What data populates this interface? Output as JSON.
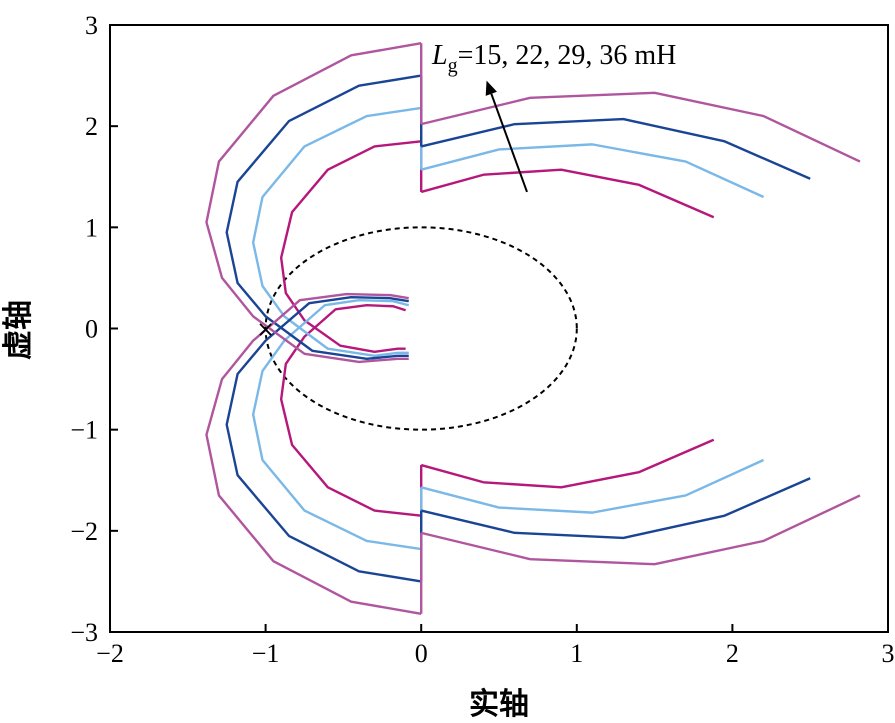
{
  "chart_data": {
    "type": "line",
    "title": "",
    "xlabel": "实轴",
    "ylabel": "虚轴",
    "xlim": [
      -2,
      3
    ],
    "ylim": [
      -3,
      3
    ],
    "xticks": [
      -2,
      -1,
      0,
      1,
      2,
      3
    ],
    "yticks": [
      -3,
      -2,
      -1,
      0,
      1,
      2,
      3
    ],
    "xtick_labels": [
      "−2",
      "−1",
      "0",
      "1",
      "2",
      "3"
    ],
    "ytick_labels": [
      "−3",
      "−2",
      "−1",
      "0",
      "1",
      "2",
      "3"
    ],
    "grid": false,
    "annotation": {
      "symbol": "L",
      "subscript": "g",
      "text": "=15, 22, 29, 36 mH",
      "arrow_from": [
        0.68,
        1.35
      ],
      "arrow_to": [
        0.42,
        2.45
      ]
    },
    "critical_point": {
      "x": -1,
      "y": 0,
      "marker": "×"
    },
    "unit_circle": {
      "center": [
        0,
        0
      ],
      "radius": 1,
      "style": "dashed"
    },
    "series": [
      {
        "color": "#b5187a",
        "values": [
          [
            0.0,
            1.85
          ],
          [
            -0.3,
            1.8
          ],
          [
            -0.6,
            1.57
          ],
          [
            -0.83,
            1.15
          ],
          [
            -0.9,
            0.7
          ],
          [
            -0.87,
            0.35
          ],
          [
            -0.75,
            0.08
          ],
          [
            -0.52,
            -0.17
          ],
          [
            -0.3,
            -0.23
          ],
          [
            -0.15,
            -0.2
          ],
          [
            -0.1,
            -0.2
          ]
        ],
        "upper_branch": [
          [
            0.0,
            1.35
          ],
          [
            0.4,
            1.52
          ],
          [
            0.9,
            1.57
          ],
          [
            1.4,
            1.42
          ],
          [
            1.88,
            1.1
          ]
        ],
        "lower_loop": [
          [
            -0.1,
            0.18
          ],
          [
            -0.18,
            0.22
          ],
          [
            -0.35,
            0.23
          ],
          [
            -0.55,
            0.19
          ],
          [
            -0.75,
            -0.08
          ],
          [
            -0.87,
            -0.35
          ],
          [
            -0.9,
            -0.7
          ],
          [
            -0.83,
            -1.15
          ],
          [
            -0.6,
            -1.57
          ],
          [
            -0.3,
            -1.8
          ],
          [
            0.0,
            -1.85
          ]
        ],
        "lower_branch": [
          [
            0.0,
            -1.35
          ],
          [
            0.4,
            -1.52
          ],
          [
            0.9,
            -1.57
          ],
          [
            1.4,
            -1.42
          ],
          [
            1.88,
            -1.1
          ]
        ]
      },
      {
        "color": "#7ab8e8",
        "values": [
          [
            0.0,
            2.18
          ],
          [
            -0.35,
            2.1
          ],
          [
            -0.75,
            1.8
          ],
          [
            -1.02,
            1.3
          ],
          [
            -1.08,
            0.85
          ],
          [
            -1.02,
            0.42
          ],
          [
            -0.88,
            0.12
          ],
          [
            -0.6,
            -0.2
          ],
          [
            -0.3,
            -0.27
          ],
          [
            -0.15,
            -0.24
          ],
          [
            -0.08,
            -0.24
          ]
        ],
        "upper_branch": [
          [
            0.0,
            1.57
          ],
          [
            0.5,
            1.77
          ],
          [
            1.1,
            1.82
          ],
          [
            1.7,
            1.65
          ],
          [
            2.2,
            1.3
          ]
        ],
        "lower_loop": [
          [
            -0.08,
            0.23
          ],
          [
            -0.18,
            0.27
          ],
          [
            -0.4,
            0.28
          ],
          [
            -0.62,
            0.23
          ],
          [
            -0.88,
            -0.12
          ],
          [
            -1.02,
            -0.42
          ],
          [
            -1.08,
            -0.85
          ],
          [
            -1.02,
            -1.3
          ],
          [
            -0.75,
            -1.8
          ],
          [
            -0.35,
            -2.1
          ],
          [
            0.0,
            -2.18
          ]
        ],
        "lower_branch": [
          [
            0.0,
            -1.57
          ],
          [
            0.5,
            -1.77
          ],
          [
            1.1,
            -1.82
          ],
          [
            1.7,
            -1.65
          ],
          [
            2.2,
            -1.3
          ]
        ]
      },
      {
        "color": "#1a4595",
        "values": [
          [
            0.0,
            2.5
          ],
          [
            -0.4,
            2.4
          ],
          [
            -0.85,
            2.05
          ],
          [
            -1.18,
            1.45
          ],
          [
            -1.25,
            0.95
          ],
          [
            -1.18,
            0.45
          ],
          [
            -1.0,
            0.12
          ],
          [
            -0.7,
            -0.22
          ],
          [
            -0.35,
            -0.3
          ],
          [
            -0.15,
            -0.27
          ],
          [
            -0.08,
            -0.27
          ]
        ],
        "upper_branch": [
          [
            0.0,
            1.8
          ],
          [
            0.6,
            2.02
          ],
          [
            1.3,
            2.07
          ],
          [
            1.95,
            1.85
          ],
          [
            2.5,
            1.48
          ]
        ],
        "lower_loop": [
          [
            -0.08,
            0.27
          ],
          [
            -0.2,
            0.3
          ],
          [
            -0.45,
            0.31
          ],
          [
            -0.72,
            0.25
          ],
          [
            -1.0,
            -0.12
          ],
          [
            -1.18,
            -0.45
          ],
          [
            -1.25,
            -0.95
          ],
          [
            -1.18,
            -1.45
          ],
          [
            -0.85,
            -2.05
          ],
          [
            -0.4,
            -2.4
          ],
          [
            0.0,
            -2.5
          ]
        ],
        "lower_branch": [
          [
            0.0,
            -1.8
          ],
          [
            0.6,
            -2.02
          ],
          [
            1.3,
            -2.07
          ],
          [
            1.95,
            -1.85
          ],
          [
            2.5,
            -1.48
          ]
        ]
      },
      {
        "color": "#b0569e",
        "values": [
          [
            0.0,
            2.82
          ],
          [
            -0.45,
            2.7
          ],
          [
            -0.95,
            2.3
          ],
          [
            -1.3,
            1.65
          ],
          [
            -1.38,
            1.05
          ],
          [
            -1.28,
            0.5
          ],
          [
            -1.08,
            0.12
          ],
          [
            -0.75,
            -0.25
          ],
          [
            -0.4,
            -0.33
          ],
          [
            -0.15,
            -0.3
          ],
          [
            -0.08,
            -0.3
          ]
        ],
        "upper_branch": [
          [
            0.0,
            2.02
          ],
          [
            0.7,
            2.28
          ],
          [
            1.5,
            2.33
          ],
          [
            2.2,
            2.1
          ],
          [
            2.82,
            1.65
          ]
        ],
        "lower_loop": [
          [
            -0.08,
            0.3
          ],
          [
            -0.2,
            0.33
          ],
          [
            -0.48,
            0.34
          ],
          [
            -0.78,
            0.28
          ],
          [
            -1.08,
            -0.12
          ],
          [
            -1.28,
            -0.5
          ],
          [
            -1.38,
            -1.05
          ],
          [
            -1.3,
            -1.65
          ],
          [
            -0.95,
            -2.3
          ],
          [
            -0.45,
            -2.7
          ],
          [
            0.0,
            -2.82
          ]
        ],
        "lower_branch": [
          [
            0.0,
            -2.02
          ],
          [
            0.7,
            -2.28
          ],
          [
            1.5,
            -2.33
          ],
          [
            2.2,
            -2.1
          ],
          [
            2.82,
            -1.65
          ]
        ]
      }
    ]
  }
}
